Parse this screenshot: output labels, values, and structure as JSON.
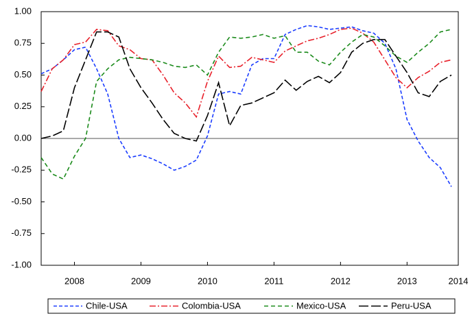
{
  "chart_data": {
    "type": "line",
    "x": [
      2008,
      2008.167,
      2008.333,
      2008.5,
      2008.667,
      2008.833,
      2009,
      2009.167,
      2009.333,
      2009.5,
      2009.667,
      2009.833,
      2010,
      2010.167,
      2010.333,
      2010.5,
      2010.667,
      2010.833,
      2011,
      2011.167,
      2011.333,
      2011.5,
      2011.667,
      2011.833,
      2012,
      2012.167,
      2012.333,
      2012.5,
      2012.667,
      2012.833,
      2013,
      2013.167,
      2013.333,
      2013.5,
      2013.667,
      2013.833,
      2014,
      2014.167
    ],
    "series": [
      {
        "name": "Chile-USA",
        "color": "#1a3cff",
        "dash": "5,3",
        "values": [
          0.51,
          0.55,
          0.62,
          0.7,
          0.72,
          0.55,
          0.35,
          0.0,
          -0.15,
          -0.13,
          -0.16,
          -0.2,
          -0.25,
          -0.22,
          -0.17,
          0.02,
          0.35,
          0.37,
          0.35,
          0.58,
          0.63,
          0.63,
          0.82,
          0.86,
          0.89,
          0.88,
          0.86,
          0.87,
          0.88,
          0.85,
          0.83,
          0.75,
          0.55,
          0.15,
          -0.02,
          -0.15,
          -0.23,
          -0.38
        ]
      },
      {
        "name": "Colombia-USA",
        "color": "#e8202a",
        "dash": "9,3,2,3",
        "values": [
          0.37,
          0.55,
          0.62,
          0.74,
          0.76,
          0.86,
          0.85,
          0.73,
          0.7,
          0.63,
          0.62,
          0.5,
          0.36,
          0.28,
          0.17,
          0.45,
          0.65,
          0.56,
          0.57,
          0.64,
          0.62,
          0.6,
          0.69,
          0.73,
          0.77,
          0.79,
          0.82,
          0.86,
          0.87,
          0.83,
          0.76,
          0.62,
          0.48,
          0.4,
          0.48,
          0.53,
          0.6,
          0.62
        ]
      },
      {
        "name": "Mexico-USA",
        "color": "#1a8a1a",
        "dash": "6,4",
        "values": [
          -0.15,
          -0.28,
          -0.32,
          -0.14,
          0.0,
          0.45,
          0.55,
          0.62,
          0.64,
          0.63,
          0.62,
          0.6,
          0.57,
          0.56,
          0.58,
          0.5,
          0.68,
          0.8,
          0.79,
          0.8,
          0.82,
          0.79,
          0.81,
          0.68,
          0.68,
          0.61,
          0.58,
          0.68,
          0.76,
          0.82,
          0.8,
          0.73,
          0.65,
          0.6,
          0.68,
          0.75,
          0.84,
          0.86
        ]
      },
      {
        "name": "Peru-USA",
        "color": "#000000",
        "dash": "14,4",
        "values": [
          0.0,
          0.02,
          0.06,
          0.4,
          0.62,
          0.84,
          0.84,
          0.8,
          0.55,
          0.4,
          0.28,
          0.15,
          0.04,
          0.0,
          -0.02,
          0.18,
          0.44,
          0.1,
          0.26,
          0.28,
          0.32,
          0.36,
          0.46,
          0.38,
          0.45,
          0.49,
          0.44,
          0.52,
          0.68,
          0.75,
          0.78,
          0.78,
          0.65,
          0.52,
          0.36,
          0.33,
          0.45,
          0.5
        ]
      }
    ],
    "xlim": [
      2008,
      2014.27
    ],
    "xticks": [
      {
        "value": 2008.5,
        "label": "2008"
      },
      {
        "value": 2009.5,
        "label": "2009"
      },
      {
        "value": 2010.5,
        "label": "2010"
      },
      {
        "value": 2011.5,
        "label": "2011"
      },
      {
        "value": 2012.5,
        "label": "2012"
      },
      {
        "value": 2013.5,
        "label": "2013"
      },
      {
        "value": 2014.27,
        "label": "2014"
      }
    ],
    "ylim": [
      -1,
      1
    ],
    "yticks": [
      {
        "value": 1,
        "label": "1.00"
      },
      {
        "value": 0.75,
        "label": "0.75"
      },
      {
        "value": 0.5,
        "label": "0.50"
      },
      {
        "value": 0.25,
        "label": "0.25"
      },
      {
        "value": 0,
        "label": "0.00"
      },
      {
        "value": -0.25,
        "label": "-0.25"
      },
      {
        "value": -0.5,
        "label": "-0.50"
      },
      {
        "value": -0.75,
        "label": "-0.75"
      },
      {
        "value": -1,
        "label": "-1.00"
      }
    ],
    "zero_line": true,
    "legend": "bottom"
  }
}
